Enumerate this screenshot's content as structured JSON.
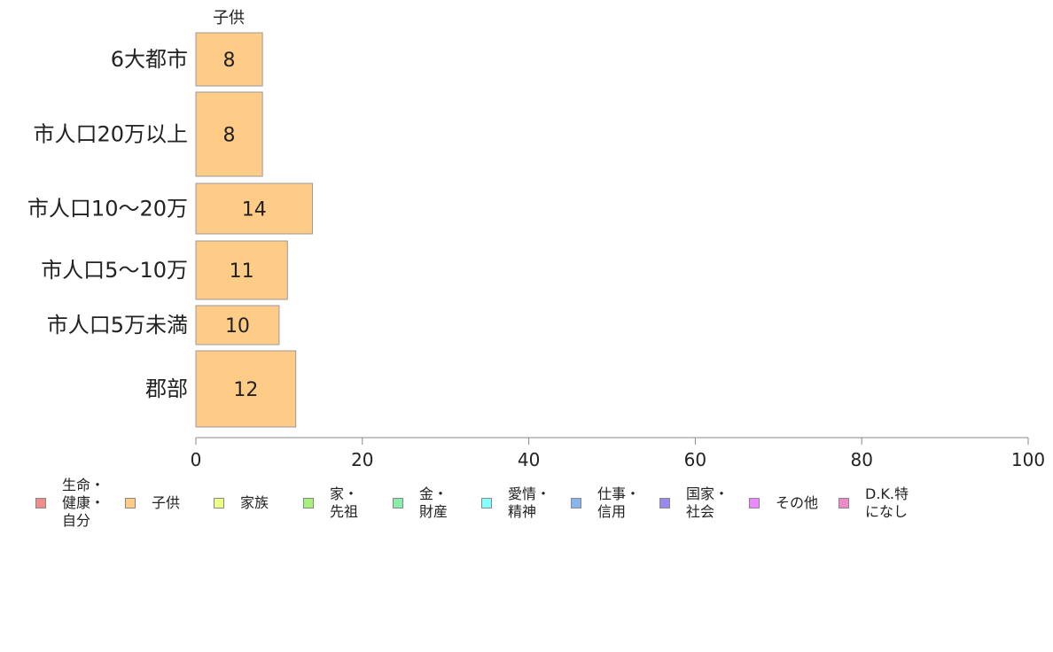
{
  "chart_data": {
    "type": "bar",
    "orientation": "horizontal",
    "column_label": "子供",
    "categories": [
      "6大都市",
      "市人口20万以上",
      "市人口10〜20万",
      "市人口5〜10万",
      "市人口5万未満",
      "郡部"
    ],
    "series": [
      {
        "name": "子供",
        "values": [
          8,
          8,
          14,
          11,
          10,
          12
        ],
        "color": "#ffcc88"
      }
    ],
    "data_labels": [
      "8",
      "8",
      "14",
      "11",
      "10",
      "12"
    ],
    "xlim": [
      0,
      100
    ],
    "xticks": [
      0,
      20,
      40,
      60,
      80,
      100
    ],
    "grid": false,
    "legend_position": "bottom"
  },
  "legend": [
    {
      "label": "生命・\n健康・\n自分",
      "color": "#f28b8b"
    },
    {
      "label": "子供",
      "color": "#ffcc88"
    },
    {
      "label": "家族",
      "color": "#eeff88"
    },
    {
      "label": "家・\n先祖",
      "color": "#a6f27a"
    },
    {
      "label": "金・\n財産",
      "color": "#88eeaa"
    },
    {
      "label": "愛情・\n精神",
      "color": "#88ffff"
    },
    {
      "label": "仕事・\n信用",
      "color": "#88b4f2"
    },
    {
      "label": "国家・\n社会",
      "color": "#9988ee"
    },
    {
      "label": "その他",
      "color": "#ee88ff"
    },
    {
      "label": "D.K.特\nになし",
      "color": "#f288cc"
    }
  ]
}
